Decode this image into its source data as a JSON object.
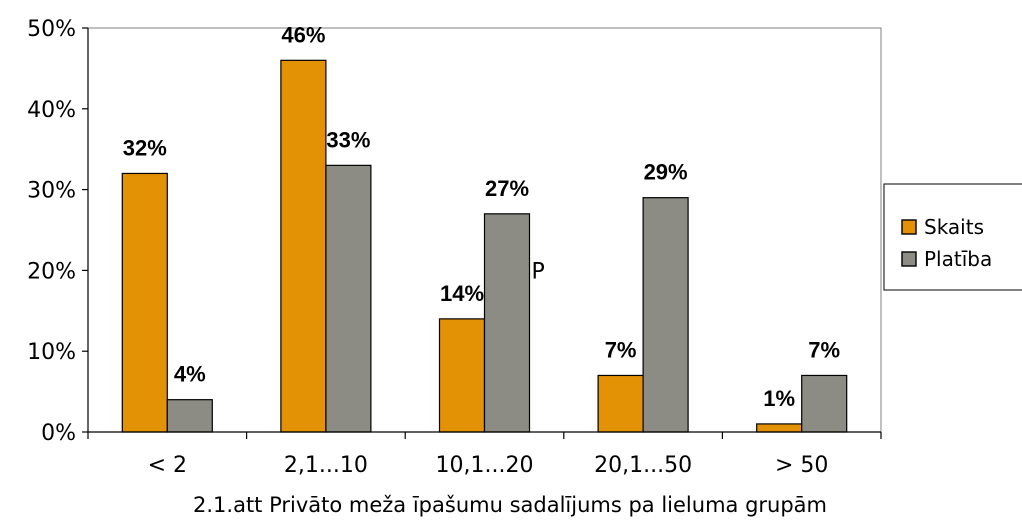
{
  "chart_data": {
    "type": "bar",
    "categories": [
      "< 2",
      "2,1...10",
      "10,1...20",
      "20,1...50",
      "> 50"
    ],
    "series": [
      {
        "name": "Skaits",
        "color": "#e39105",
        "values": [
          32,
          46,
          14,
          7,
          1
        ],
        "labels": [
          "32%",
          "46%",
          "14%",
          "7%",
          "1%"
        ]
      },
      {
        "name": "Platība",
        "color": "#8c8c84",
        "values": [
          4,
          33,
          27,
          29,
          7
        ],
        "labels": [
          "4%",
          "33%",
          "27%",
          "29%",
          "7%"
        ]
      }
    ],
    "ylim": [
      0,
      50
    ],
    "yticks": [
      "0%",
      "10%",
      "20%",
      "30%",
      "40%",
      "50%"
    ],
    "grid": false,
    "legend": "right",
    "annotation": "P"
  },
  "caption": "2.1.att Privāto meža īpašumu sadalījums pa lieluma grupām"
}
